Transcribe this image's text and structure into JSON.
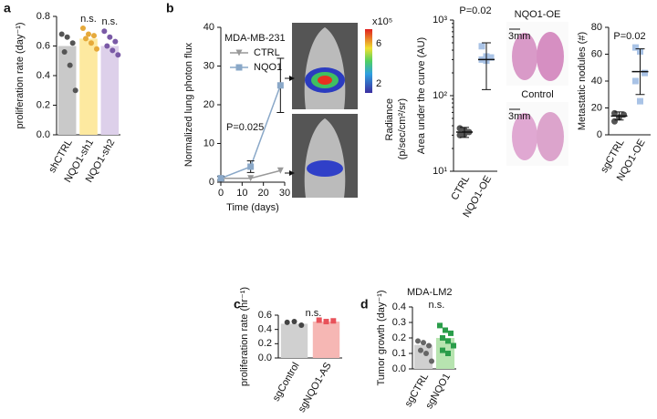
{
  "panel_labels": [
    "a",
    "b",
    "c",
    "d"
  ],
  "images": {
    "colorbar_exponent": "x10⁵",
    "colorbar_ticks": [
      6,
      2
    ],
    "colorbar_label": "Radiance",
    "colorbar_units": "(p/sec/cm²/sr)",
    "histology_top": "NQO1-OE",
    "histology_bottom": "Control",
    "scale_top": "3mm",
    "scale_bottom": "3mm"
  },
  "chart_data": [
    {
      "type": "bar",
      "ylabel": "proliferation rate (day⁻¹)",
      "categories": [
        "shCTRL",
        "NQO1-sh1",
        "NQO1-sh2"
      ],
      "values": [
        0.6,
        0.65,
        0.6
      ],
      "colors": [
        "#c9c9c9",
        "#fde9a0",
        "#ddd0ea"
      ],
      "point_colors": [
        "#555555",
        "#e6a93a",
        "#7a5aa6"
      ],
      "point_markers": [
        "circle",
        "circle",
        "circle"
      ],
      "points": [
        [
          0.68,
          0.66,
          0.62,
          0.56,
          0.47,
          0.3
        ],
        [
          0.72,
          0.68,
          0.67,
          0.65,
          0.62,
          0.58
        ],
        [
          0.7,
          0.66,
          0.63,
          0.6,
          0.57,
          0.54
        ]
      ],
      "significance": [
        null,
        "n.s.",
        "n.s."
      ],
      "ylim": [
        0,
        0.8
      ],
      "yticks": [
        {
          "value": 0,
          "label": "0.0"
        },
        0.2,
        0.4,
        0.6,
        0.8
      ]
    },
    {
      "type": "line",
      "title": "MDA-MB-231",
      "annotation": "P=0.025",
      "xlabel": "Time (days)",
      "ylabel": "Normalized lung photon flux",
      "x": [
        0,
        14,
        28
      ],
      "xlim": [
        0,
        30
      ],
      "xticks": [
        0,
        10,
        20,
        30
      ],
      "ylim": [
        0,
        40
      ],
      "yticks": [
        0,
        10,
        20,
        30,
        40
      ],
      "series": [
        {
          "name": "CTRL",
          "color": "#999999",
          "marker": "triangle",
          "values": [
            1,
            1,
            3
          ],
          "errors": [
            null,
            null,
            null
          ]
        },
        {
          "name": "NQO1",
          "color": "#8aa8c8",
          "marker": "square",
          "values": [
            1,
            4,
            25
          ],
          "errors": [
            0.5,
            1.5,
            7
          ]
        }
      ]
    },
    {
      "type": "dot",
      "ylabel": "Area under the curve (AU)",
      "annotation": "P=0.02",
      "log_y": true,
      "categories": [
        "CTRL",
        "NQO1-OE"
      ],
      "points": [
        [
          37,
          35,
          33,
          30,
          31
        ],
        [
          450,
          330,
          320,
          300,
          290
        ]
      ],
      "means": [
        33,
        300
      ],
      "whiskers": [
        [
          28,
          38
        ],
        [
          120,
          500
        ]
      ],
      "point_colors": [
        "#555555",
        "#a9c3e6"
      ],
      "point_markers": [
        "circle",
        "square"
      ],
      "ylim": [
        10,
        1000
      ],
      "yticks": [
        {
          "value": 10,
          "label": "10¹"
        },
        {
          "value": 100,
          "label": "10²"
        },
        {
          "value": 1000,
          "label": "10³"
        }
      ]
    },
    {
      "type": "dot",
      "ylabel": "Metastatic nodules (#)",
      "annotation": "P=0.02",
      "categories": [
        "sgCTRL",
        "NQO1-OE"
      ],
      "points": [
        [
          10,
          13,
          15,
          16
        ],
        [
          65,
          62,
          46,
          40,
          25
        ]
      ],
      "means": [
        14,
        47
      ],
      "whiskers": [
        [
          11,
          17
        ],
        [
          30,
          64
        ]
      ],
      "point_colors": [
        "#555555",
        "#a9c3e6"
      ],
      "point_markers": [
        "circle",
        "square"
      ],
      "ylim": [
        0,
        80
      ],
      "yticks": [
        0,
        20,
        40,
        60,
        80
      ]
    },
    {
      "type": "bar",
      "ylabel": "proliferation rate (hr⁻¹)",
      "categories": [
        "sgControl",
        "sgNQO1-AS"
      ],
      "values": [
        0.48,
        0.51
      ],
      "colors": [
        "#d0d0d0",
        "#f6b7b4"
      ],
      "point_colors": [
        "#444444",
        "#e8525a"
      ],
      "point_markers": [
        "circle",
        "square"
      ],
      "points": [
        [
          0.5,
          0.51,
          0.46
        ],
        [
          0.53,
          0.51,
          0.52
        ]
      ],
      "significance": "n.s.",
      "ylim": [
        0,
        0.6
      ],
      "yticks": [
        {
          "value": 0,
          "label": "0.0"
        },
        0.2,
        0.4,
        0.6
      ]
    },
    {
      "type": "bar",
      "title": "MDA-LM2",
      "ylabel": "Tumor growth (day⁻¹)",
      "categories": [
        "sgCTRL",
        "sgNQO1"
      ],
      "values": [
        0.155,
        0.2
      ],
      "colors": [
        "#d0d0d0",
        "#b7e4b0"
      ],
      "point_colors": [
        "#666666",
        "#2a9d4a"
      ],
      "point_markers": [
        "circle",
        "square"
      ],
      "points": [
        [
          0.18,
          0.17,
          0.15,
          0.12,
          0.1,
          0.05
        ],
        [
          0.28,
          0.25,
          0.23,
          0.2,
          0.18,
          0.15,
          0.12,
          0.1
        ]
      ],
      "significance": "n.s.",
      "ylim": [
        0,
        0.4
      ],
      "yticks": [
        {
          "value": 0,
          "label": "0.0"
        },
        0.1,
        0.2,
        0.3,
        0.4
      ]
    }
  ]
}
